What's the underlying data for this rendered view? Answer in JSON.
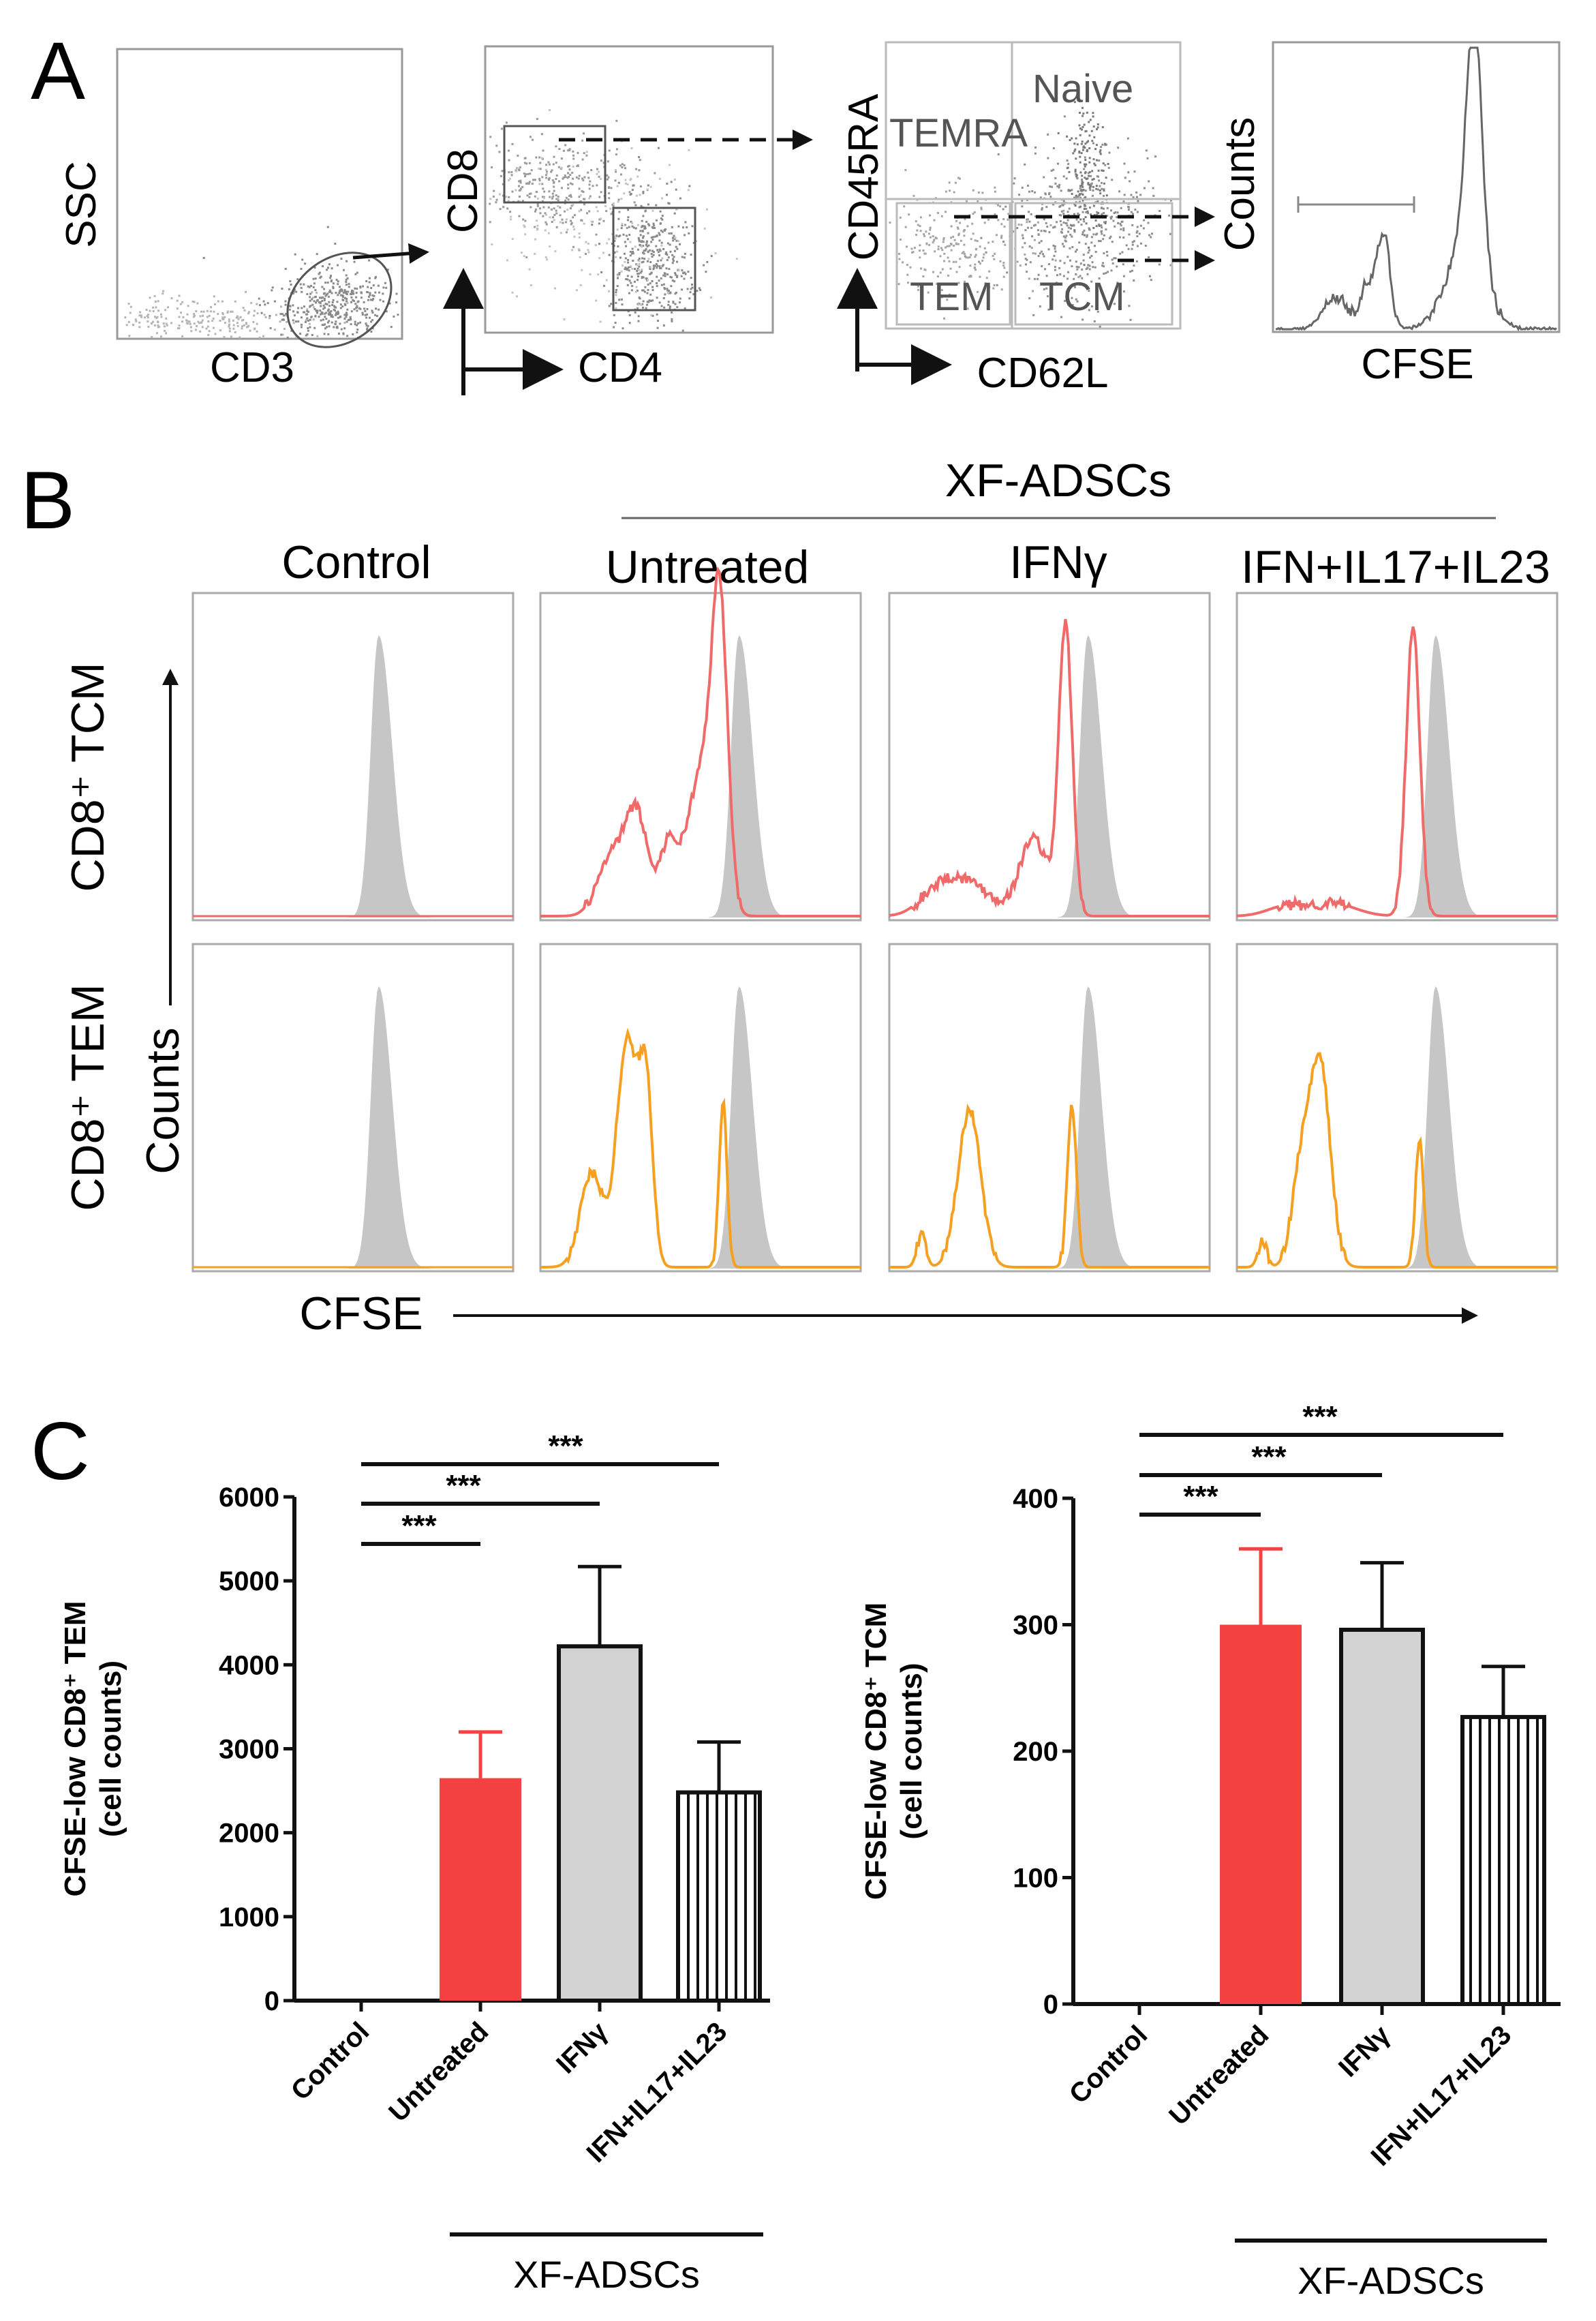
{
  "panel_a": {
    "letter": "A",
    "plot1": {
      "y_label": "SSC",
      "x_label": "CD3"
    },
    "plot2": {
      "y_label": "CD8",
      "x_label": "CD4"
    },
    "plot3": {
      "y_label": "CD45RA",
      "x_label": "CD62L",
      "gates": {
        "naive": "Naive",
        "temra": "TEMRA",
        "tem": "TEM",
        "tcm": "TCM"
      }
    },
    "plot4": {
      "y_label": "Counts",
      "x_label": "CFSE"
    }
  },
  "panel_b": {
    "letter": "B",
    "group_label": "XF-ADSCs",
    "columns": [
      "Control",
      "Untreated",
      "IFNγ",
      "IFN+IL17+IL23"
    ],
    "rows": [
      "CD8⁺ TCM",
      "CD8⁺ TEM"
    ],
    "y_axis_label": "Counts",
    "x_axis_label": "CFSE",
    "colors": {
      "control_fill": "#c6c6c6",
      "tcm_line": "#f06a6a",
      "tem_line": "#f5a020"
    }
  },
  "panel_c": {
    "letter": "C",
    "group_label": "XF-ADSCs"
  },
  "chart_data": [
    {
      "type": "bar",
      "title": "",
      "ylabel_line1": "CFSE-low CD8⁺ TEM",
      "ylabel_line2": "(cell counts)",
      "categories": [
        "Control",
        "Untreated",
        "IFNγ",
        "IFN+IL17+IL23"
      ],
      "values": [
        0,
        2650,
        4220,
        2480
      ],
      "errors": [
        0,
        550,
        950,
        600
      ],
      "ylim": [
        0,
        6000
      ],
      "yticks": [
        0,
        1000,
        2000,
        3000,
        4000,
        5000,
        6000
      ],
      "fills": [
        "#ffffff",
        "#f44242",
        "#d2d2d2",
        "stripes"
      ],
      "significance": [
        {
          "from": 0,
          "to": 1,
          "label": "***"
        },
        {
          "from": 0,
          "to": 2,
          "label": "***"
        },
        {
          "from": 0,
          "to": 3,
          "label": "***"
        }
      ],
      "group_label": "XF-ADSCs"
    },
    {
      "type": "bar",
      "title": "",
      "ylabel_line1": "CFSE-low CD8⁺ TCM",
      "ylabel_line2": "(cell counts)",
      "categories": [
        "Control",
        "Untreated",
        "IFNγ",
        "IFN+IL17+IL23"
      ],
      "values": [
        0,
        300,
        296,
        227
      ],
      "errors": [
        0,
        60,
        53,
        40
      ],
      "ylim": [
        0,
        400
      ],
      "yticks": [
        0,
        100,
        200,
        300,
        400
      ],
      "fills": [
        "#ffffff",
        "#f44242",
        "#d2d2d2",
        "stripes"
      ],
      "significance": [
        {
          "from": 0,
          "to": 1,
          "label": "***"
        },
        {
          "from": 0,
          "to": 2,
          "label": "***"
        },
        {
          "from": 0,
          "to": 3,
          "label": "***"
        }
      ],
      "group_label": "XF-ADSCs"
    }
  ]
}
